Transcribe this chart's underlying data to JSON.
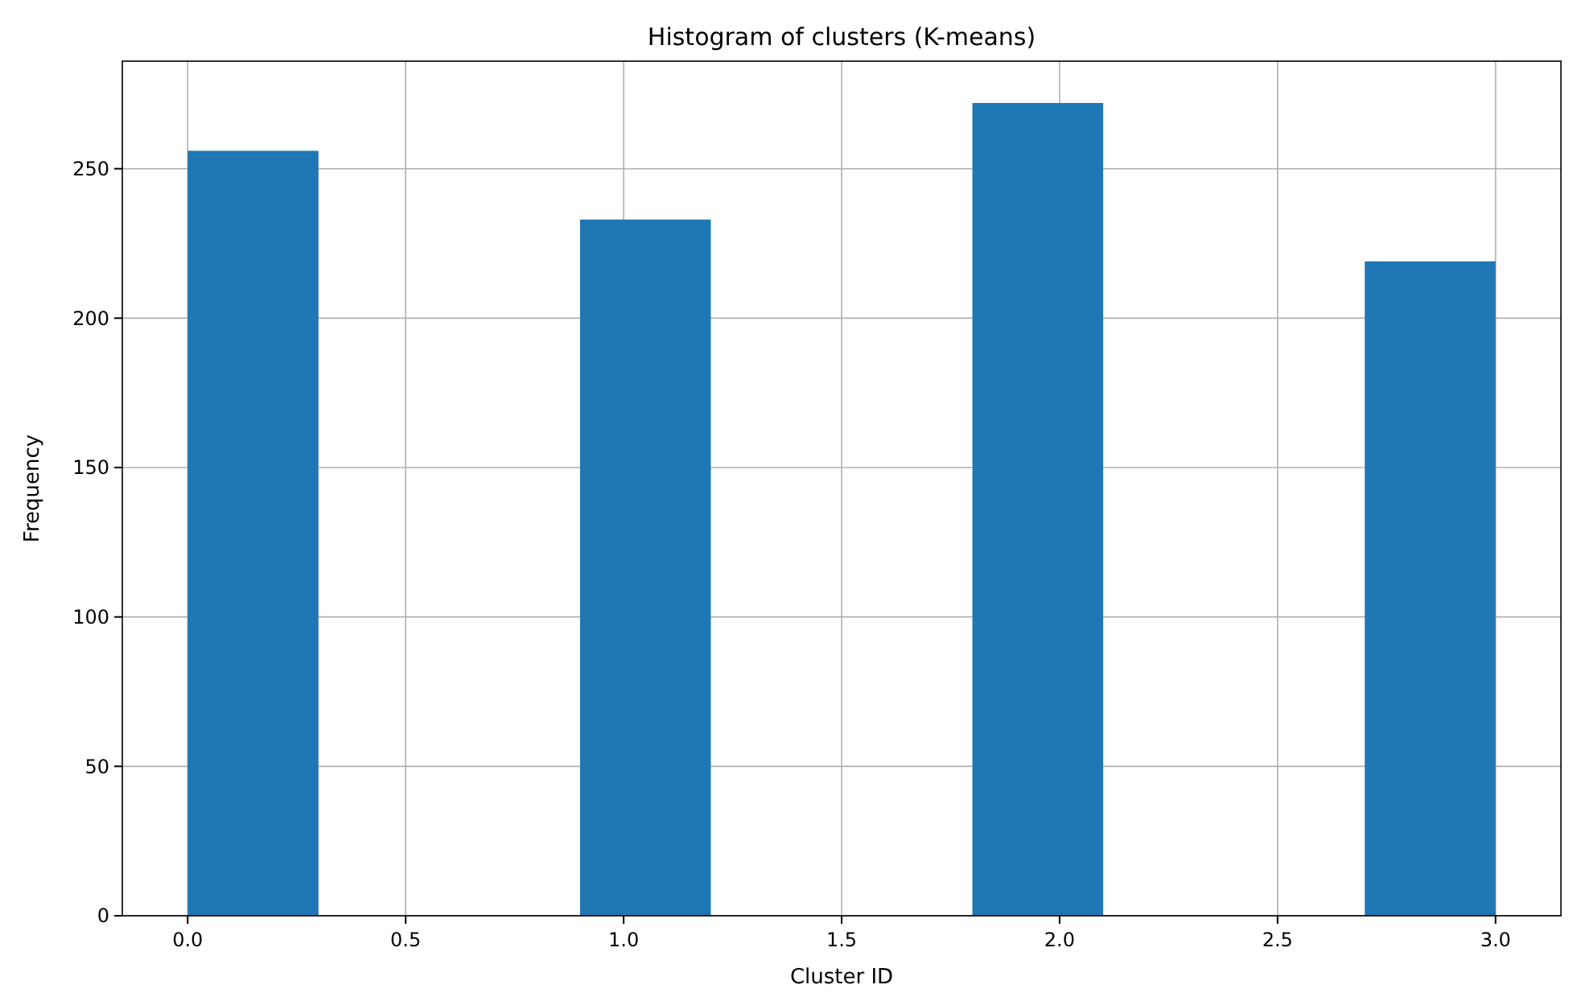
{
  "chart_data": {
    "type": "histogram",
    "title": "Histogram of clusters (K-means)",
    "xlabel": "Cluster ID",
    "ylabel": "Frequency",
    "bins": [
      0,
      0.3,
      0.6,
      0.9,
      1.2,
      1.5,
      1.8,
      2.1,
      2.4,
      2.7,
      3.0
    ],
    "values": [
      256,
      0,
      0,
      233,
      0,
      0,
      272,
      0,
      0,
      219
    ],
    "color": "#1f77b4",
    "xlim": [
      -0.15,
      3.15
    ],
    "xticks": [
      {
        "value": 0,
        "label": "0.0"
      },
      {
        "value": 0.5,
        "label": "0.5"
      },
      {
        "value": 1,
        "label": "1.0"
      },
      {
        "value": 1.5,
        "label": "1.5"
      },
      {
        "value": 2,
        "label": "2.0"
      },
      {
        "value": 2.5,
        "label": "2.5"
      },
      {
        "value": 3,
        "label": "3.0"
      }
    ],
    "ylim": [
      0,
      286
    ],
    "yticks": [
      0,
      50,
      100,
      150,
      200,
      250
    ],
    "grid": true
  }
}
